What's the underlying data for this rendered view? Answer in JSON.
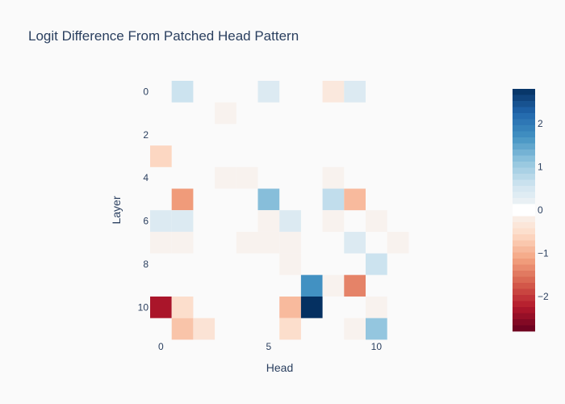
{
  "chart_data": {
    "type": "heatmap",
    "title": "Logit Difference From Patched Head Pattern",
    "xlabel": "Head",
    "ylabel": "Layer",
    "x": [
      0,
      1,
      2,
      3,
      4,
      5,
      6,
      7,
      8,
      9,
      10,
      11
    ],
    "y": [
      0,
      1,
      2,
      3,
      4,
      5,
      6,
      7,
      8,
      9,
      10,
      11
    ],
    "x_ticks": [
      0,
      5,
      10
    ],
    "y_ticks": [
      0,
      2,
      4,
      6,
      8,
      10
    ],
    "zmin": -2.8,
    "zmax": 2.8,
    "colorscale": "RdBu",
    "colorbar_ticks": [
      -2,
      -1,
      0,
      1,
      2
    ],
    "colorbar_tick_labels": [
      "−2",
      "−1",
      "0",
      "1",
      "2"
    ],
    "z": [
      [
        0,
        0.6,
        0,
        0,
        0,
        0.4,
        0,
        0,
        -0.3,
        0.4,
        0,
        0
      ],
      [
        0,
        0,
        0,
        -0.1,
        0,
        0,
        0,
        0,
        0,
        0,
        0,
        0
      ],
      [
        0,
        0,
        0,
        0,
        0,
        0,
        0,
        0,
        0,
        0,
        0,
        0
      ],
      [
        -0.6,
        0,
        0,
        0,
        0,
        0,
        0,
        0,
        0,
        0,
        0,
        0
      ],
      [
        0,
        0,
        0,
        -0.1,
        -0.1,
        0,
        0,
        0,
        -0.1,
        0,
        0,
        0
      ],
      [
        0,
        -1.2,
        0,
        0,
        0,
        1.2,
        0,
        0,
        0.7,
        -0.9,
        0,
        0
      ],
      [
        0.4,
        0.4,
        0,
        0,
        0,
        -0.1,
        0.4,
        0,
        -0.1,
        0,
        -0.1,
        0
      ],
      [
        -0.1,
        -0.1,
        0,
        0,
        -0.1,
        -0.1,
        -0.1,
        0,
        0,
        0.4,
        0,
        -0.1
      ],
      [
        0,
        0,
        0,
        0,
        0,
        0,
        -0.1,
        0,
        0,
        0,
        0.6,
        0
      ],
      [
        0,
        0,
        0,
        0,
        0,
        0,
        0,
        1.7,
        -0.1,
        -1.4,
        0,
        0
      ],
      [
        -2.3,
        -0.5,
        0,
        0,
        0,
        0,
        -0.9,
        2.8,
        0,
        0,
        -0.1,
        0
      ],
      [
        0,
        -0.8,
        -0.4,
        0,
        0,
        0,
        -0.5,
        0,
        0,
        -0.1,
        1.1,
        0
      ]
    ]
  }
}
